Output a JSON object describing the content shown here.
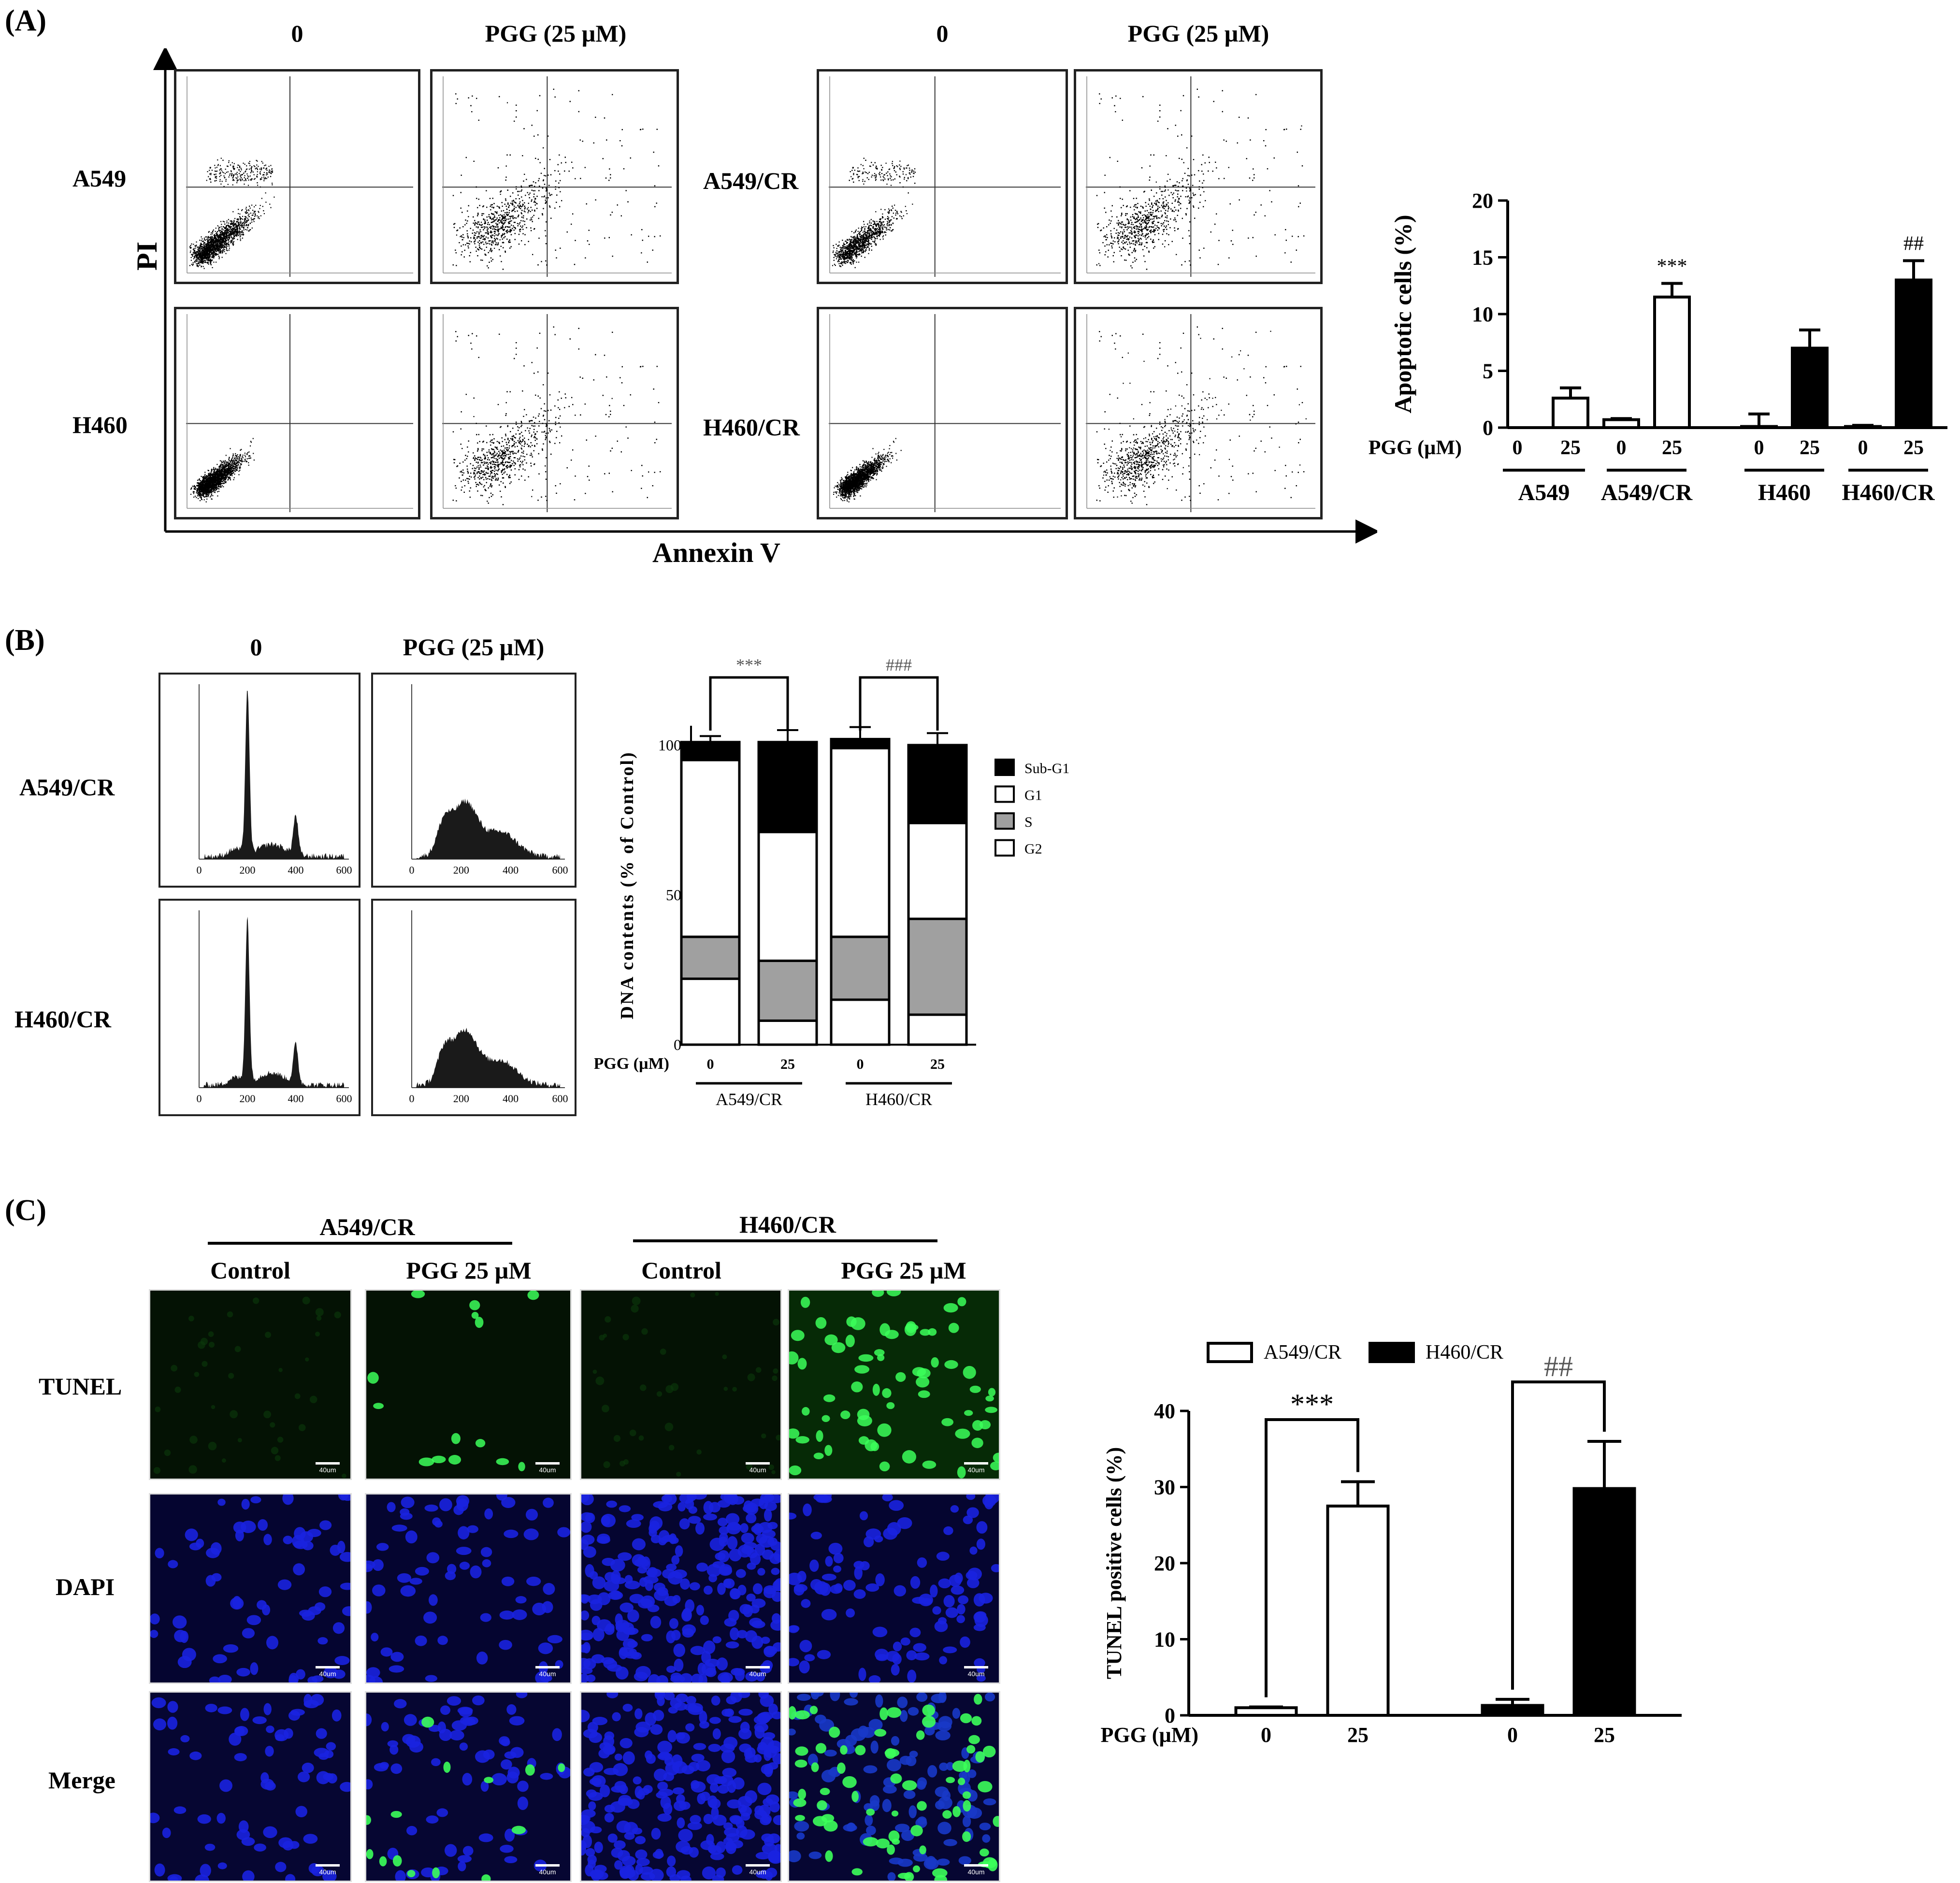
{
  "panels": {
    "a": "(A)",
    "b": "(B)",
    "c": "(C)"
  },
  "flow": {
    "col_headers": [
      "0",
      "PGG (25 µM)",
      "0",
      "PGG (25 µM)"
    ],
    "row_labels_left": [
      "A549",
      "H460"
    ],
    "row_labels_right": [
      "A549/CR",
      "H460/CR"
    ],
    "y_axis": "PI",
    "x_axis": "Annexin V"
  },
  "cellcycle": {
    "col_headers": [
      "0",
      "PGG (25 µM)"
    ],
    "row_labels": [
      "A549/CR",
      "H460/CR"
    ],
    "hist_ticks": [
      "0",
      "200",
      "400",
      "600"
    ]
  },
  "tunel_images": {
    "groups": [
      "A549/CR",
      "H460/CR"
    ],
    "col_headers": [
      "Control",
      "PGG 25 µM",
      "Control",
      "PGG 25 µM"
    ],
    "row_labels": [
      "TUNEL",
      "DAPI",
      "Merge"
    ],
    "scale_label": "40um"
  },
  "chart_data": [
    {
      "type": "bar",
      "title": "",
      "ylabel": "Apoptotic cells (%)",
      "xlabel": "",
      "x_prefix": "PGG (µM)",
      "ylim": [
        0,
        20
      ],
      "yticks": [
        "0",
        "5",
        "10",
        "15",
        "20"
      ],
      "groups": [
        "A549",
        "A549/CR",
        "H460",
        "H460/CR"
      ],
      "categories": [
        "0",
        "25",
        "0",
        "25",
        "0",
        "25",
        "0",
        "25"
      ],
      "values": [
        0.0,
        2.6,
        0.7,
        11.5,
        0.1,
        7.0,
        0.1,
        13.0
      ],
      "errors": [
        0.0,
        0.9,
        0.1,
        1.2,
        1.1,
        1.6,
        0.1,
        1.7
      ],
      "fills": [
        "#ffffff",
        "#ffffff",
        "#ffffff",
        "#ffffff",
        "#000000",
        "#000000",
        "#000000",
        "#000000"
      ],
      "annotations": [
        {
          "index": 3,
          "text": "***"
        },
        {
          "index": 7,
          "text": "##"
        }
      ]
    },
    {
      "type": "bar",
      "title": "",
      "ylabel": "DNA contents (% of Control)",
      "xlabel": "",
      "x_prefix": "PGG (µM)",
      "ylim": [
        0,
        100
      ],
      "yticks": [
        "0",
        "50",
        "100"
      ],
      "groups": [
        "A549/CR",
        "H460/CR"
      ],
      "categories": [
        "0",
        "25",
        "0",
        "25"
      ],
      "legend": [
        "Sub-G1",
        "G1",
        "S",
        "G2"
      ],
      "series": [
        {
          "name": "G2",
          "values": [
            22,
            8,
            15,
            10
          ],
          "color": "#ffffff"
        },
        {
          "name": "S",
          "values": [
            14,
            20,
            21,
            32
          ],
          "color": "#a0a0a0"
        },
        {
          "name": "G1",
          "values": [
            59,
            43,
            63,
            32
          ],
          "color": "#ffffff"
        },
        {
          "name": "Sub-G1",
          "values": [
            6,
            30,
            3,
            26
          ],
          "color": "#000000"
        }
      ],
      "brackets": [
        {
          "from": 0,
          "to": 1,
          "text": "***"
        },
        {
          "from": 2,
          "to": 3,
          "text": "###"
        }
      ]
    },
    {
      "type": "bar",
      "title": "",
      "ylabel": "TUNEL positive cells (%)",
      "xlabel": "",
      "x_prefix": "PGG (µM)",
      "ylim": [
        0,
        40
      ],
      "yticks": [
        "0",
        "10",
        "20",
        "30",
        "40"
      ],
      "legend": [
        "A549/CR",
        "H460/CR"
      ],
      "categories": [
        "0",
        "25",
        "0",
        "25"
      ],
      "values": [
        1.0,
        27.5,
        1.3,
        29.8
      ],
      "errors": [
        0.1,
        3.2,
        0.8,
        6.2
      ],
      "fills": [
        "#ffffff",
        "#ffffff",
        "#000000",
        "#000000"
      ],
      "brackets": [
        {
          "from": 0,
          "to": 1,
          "text": "***"
        },
        {
          "from": 2,
          "to": 3,
          "text": "##"
        }
      ]
    }
  ]
}
